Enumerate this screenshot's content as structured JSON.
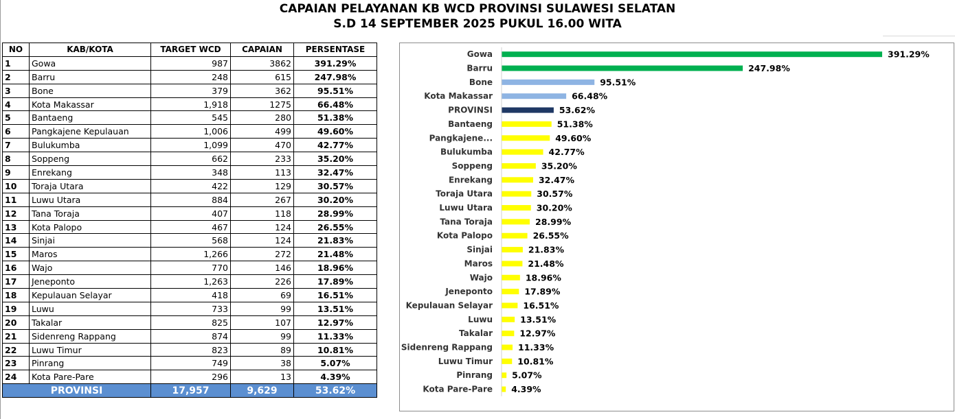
{
  "title": {
    "line1": "CAPAIAN PELAYANAN KB WCD PROVINSI SULAWESI SELATAN",
    "line2": "S.D 14 SEPTEMBER 2025 PUKUL 16.00 WITA"
  },
  "table": {
    "headers": [
      "NO",
      "KAB/KOTA",
      "TARGET WCD",
      "CAPAIAN",
      "PERSENTASE"
    ],
    "rows": [
      {
        "no": "1",
        "name": "Gowa",
        "target": "987",
        "capaian": "3862",
        "persentase": "391.29%"
      },
      {
        "no": "2",
        "name": "Barru",
        "target": "248",
        "capaian": "615",
        "persentase": "247.98%"
      },
      {
        "no": "3",
        "name": "Bone",
        "target": "379",
        "capaian": "362",
        "persentase": "95.51%"
      },
      {
        "no": "4",
        "name": "Kota Makassar",
        "target": "1,918",
        "capaian": "1275",
        "persentase": "66.48%"
      },
      {
        "no": "5",
        "name": "Bantaeng",
        "target": "545",
        "capaian": "280",
        "persentase": "51.38%"
      },
      {
        "no": "6",
        "name": "Pangkajene Kepulauan",
        "target": "1,006",
        "capaian": "499",
        "persentase": "49.60%"
      },
      {
        "no": "7",
        "name": "Bulukumba",
        "target": "1,099",
        "capaian": "470",
        "persentase": "42.77%"
      },
      {
        "no": "8",
        "name": "Soppeng",
        "target": "662",
        "capaian": "233",
        "persentase": "35.20%"
      },
      {
        "no": "9",
        "name": "Enrekang",
        "target": "348",
        "capaian": "113",
        "persentase": "32.47%"
      },
      {
        "no": "10",
        "name": "Toraja Utara",
        "target": "422",
        "capaian": "129",
        "persentase": "30.57%"
      },
      {
        "no": "11",
        "name": "Luwu Utara",
        "target": "884",
        "capaian": "267",
        "persentase": "30.20%"
      },
      {
        "no": "12",
        "name": "Tana Toraja",
        "target": "407",
        "capaian": "118",
        "persentase": "28.99%"
      },
      {
        "no": "13",
        "name": "Kota Palopo",
        "target": "467",
        "capaian": "124",
        "persentase": "26.55%"
      },
      {
        "no": "14",
        "name": "Sinjai",
        "target": "568",
        "capaian": "124",
        "persentase": "21.83%"
      },
      {
        "no": "15",
        "name": "Maros",
        "target": "1,266",
        "capaian": "272",
        "persentase": "21.48%"
      },
      {
        "no": "16",
        "name": "Wajo",
        "target": "770",
        "capaian": "146",
        "persentase": "18.96%"
      },
      {
        "no": "17",
        "name": "Jeneponto",
        "target": "1,263",
        "capaian": "226",
        "persentase": "17.89%"
      },
      {
        "no": "18",
        "name": "Kepulauan Selayar",
        "target": "418",
        "capaian": "69",
        "persentase": "16.51%"
      },
      {
        "no": "19",
        "name": "Luwu",
        "target": "733",
        "capaian": "99",
        "persentase": "13.51%"
      },
      {
        "no": "20",
        "name": "Takalar",
        "target": "825",
        "capaian": "107",
        "persentase": "12.97%"
      },
      {
        "no": "21",
        "name": "Sidenreng Rappang",
        "target": "874",
        "capaian": "99",
        "persentase": "11.33%"
      },
      {
        "no": "22",
        "name": "Luwu Timur",
        "target": "823",
        "capaian": "89",
        "persentase": "10.81%"
      },
      {
        "no": "23",
        "name": "Pinrang",
        "target": "749",
        "capaian": "38",
        "persentase": "5.07%"
      },
      {
        "no": "24",
        "name": "Kota Pare-Pare",
        "target": "296",
        "capaian": "13",
        "persentase": "4.39%"
      }
    ],
    "total": {
      "label": "PROVINSI",
      "target": "17,957",
      "capaian": "9,629",
      "persentase": "53.62%"
    }
  },
  "chart_data": {
    "type": "bar",
    "orientation": "horizontal",
    "title": "",
    "xlabel": "",
    "ylabel": "",
    "grid": false,
    "categories": [
      "Gowa",
      "Barru",
      "Bone",
      "Kota Makassar",
      "PROVINSI",
      "Bantaeng",
      "Pangkajene...",
      "Bulukumba",
      "Soppeng",
      "Enrekang",
      "Toraja Utara",
      "Luwu Utara",
      "Tana Toraja",
      "Kota Palopo",
      "Sinjai",
      "Maros",
      "Wajo",
      "Jeneponto",
      "Kepulauan Selayar",
      "Luwu",
      "Takalar",
      "Sidenreng Rappang",
      "Luwu Timur",
      "Pinrang",
      "Kota Pare-Pare"
    ],
    "values": [
      391.29,
      247.98,
      95.51,
      66.48,
      53.62,
      51.38,
      49.6,
      42.77,
      35.2,
      32.47,
      30.57,
      30.2,
      28.99,
      26.55,
      21.83,
      21.48,
      18.96,
      17.89,
      16.51,
      13.51,
      12.97,
      11.33,
      10.81,
      5.07,
      4.39
    ],
    "data_labels": [
      "391.29%",
      "247.98%",
      "95.51%",
      "66.48%",
      "53.62%",
      "51.38%",
      "49.60%",
      "42.77%",
      "35.20%",
      "32.47%",
      "30.57%",
      "30.20%",
      "28.99%",
      "26.55%",
      "21.83%",
      "21.48%",
      "18.96%",
      "17.89%",
      "16.51%",
      "13.51%",
      "12.97%",
      "11.33%",
      "10.81%",
      "5.07%",
      "4.39%"
    ],
    "bar_colors": [
      "#00b050",
      "#00b050",
      "#8eb4e3",
      "#8eb4e3",
      "#1f3864",
      "#ffff00",
      "#ffff00",
      "#ffff00",
      "#ffff00",
      "#ffff00",
      "#ffff00",
      "#ffff00",
      "#ffff00",
      "#ffff00",
      "#ffff00",
      "#ffff00",
      "#ffff00",
      "#ffff00",
      "#ffff00",
      "#ffff00",
      "#ffff00",
      "#ffff00",
      "#ffff00",
      "#ffff00",
      "#ffff00"
    ],
    "xlim": [
      0,
      391.29
    ]
  }
}
